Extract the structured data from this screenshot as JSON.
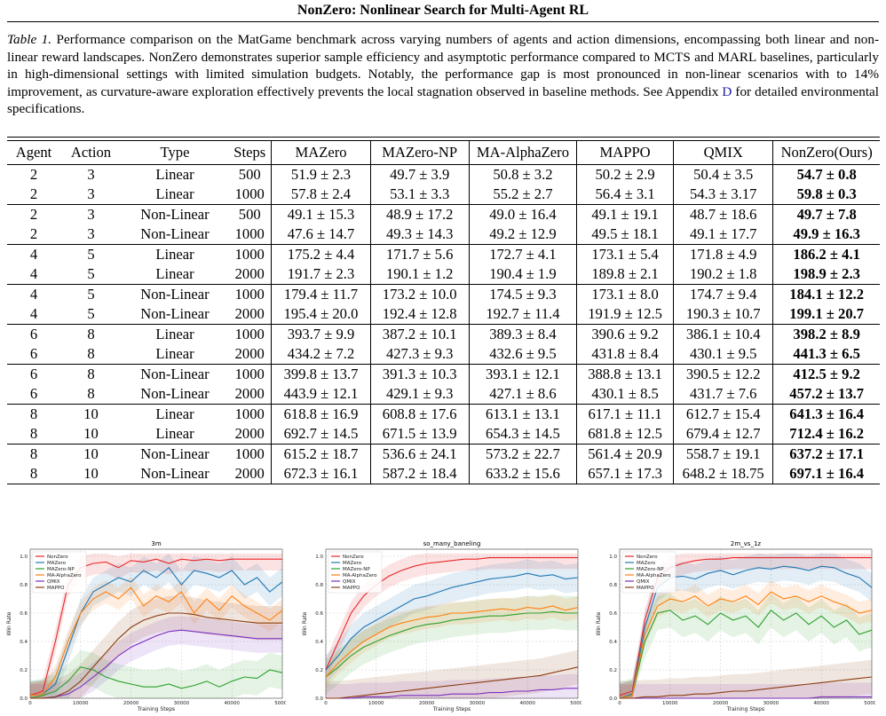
{
  "header": {
    "title": "NonZero: Nonlinear Search for Multi-Agent RL"
  },
  "caption": {
    "label": "Table 1.",
    "text_before_ref": " Performance comparison on the MatGame benchmark across varying numbers of agents and action dimensions, encompassing both linear and non-linear reward landscapes. NonZero demonstrates superior sample efficiency and asymptotic performance compared to MCTS and MARL baselines, particularly in high-dimensional settings with limited simulation budgets. Notably, the performance gap is most pronounced in non-linear scenarios with to 14% improvement, as curvature-aware exploration effectively prevents the local stagnation observed in baseline methods. See Appendix ",
    "ref": "D",
    "text_after_ref": " for detailed environmental specifications."
  },
  "table": {
    "headers": [
      "Agent",
      "Action",
      "Type",
      "Steps",
      "MAZero",
      "MAZero-NP",
      "MA-AlphaZero",
      "MAPPO",
      "QMIX",
      "NonZero(Ours)"
    ],
    "rows": [
      [
        "2",
        "3",
        "Linear",
        "500",
        "51.9 ± 2.3",
        "49.7 ± 3.9",
        "50.8 ± 3.2",
        "50.2 ± 2.9",
        "50.4 ± 3.5",
        "54.7 ± 0.8"
      ],
      [
        "2",
        "3",
        "Linear",
        "1000",
        "57.8 ± 2.4",
        "53.1 ± 3.3",
        "55.2 ± 2.7",
        "56.4 ± 3.1",
        "54.3 ± 3.17",
        "59.8 ± 0.3"
      ],
      [
        "2",
        "3",
        "Non-Linear",
        "500",
        "49.1 ± 15.3",
        "48.9 ± 17.2",
        "49.0 ± 16.4",
        "49.1 ± 19.1",
        "48.7 ± 18.6",
        "49.7 ± 7.8"
      ],
      [
        "2",
        "3",
        "Non-Linear",
        "1000",
        "47.6 ± 14.7",
        "49.3 ± 14.3",
        "49.2 ± 12.9",
        "49.5 ± 18.1",
        "49.1 ± 17.7",
        "49.9 ± 16.3"
      ],
      [
        "4",
        "5",
        "Linear",
        "1000",
        "175.2 ± 4.4",
        "171.7 ± 5.6",
        "172.7 ± 4.1",
        "173.1 ± 5.4",
        "171.8 ± 4.9",
        "186.2 ± 4.1"
      ],
      [
        "4",
        "5",
        "Linear",
        "2000",
        "191.7 ± 2.3",
        "190.1 ± 1.2",
        "190.4 ± 1.9",
        "189.8 ± 2.1",
        "190.2 ± 1.8",
        "198.9 ± 2.3"
      ],
      [
        "4",
        "5",
        "Non-Linear",
        "1000",
        "179.4 ± 11.7",
        "173.2 ± 10.0",
        "174.5 ± 9.3",
        "173.1 ± 8.0",
        "174.7 ± 9.4",
        "184.1 ± 12.2"
      ],
      [
        "4",
        "5",
        "Non-Linear",
        "2000",
        "195.4 ± 20.0",
        "192.4 ± 12.8",
        "192.7 ± 11.4",
        "191.9 ± 12.5",
        "190.3 ± 10.7",
        "199.1 ± 20.7"
      ],
      [
        "6",
        "8",
        "Linear",
        "1000",
        "393.7 ± 9.9",
        "387.2 ± 10.1",
        "389.3 ± 8.4",
        "390.6 ± 9.2",
        "386.1 ± 10.4",
        "398.2 ± 8.9"
      ],
      [
        "6",
        "8",
        "Linear",
        "2000",
        "434.2 ± 7.2",
        "427.3 ± 9.3",
        "432.6 ± 9.5",
        "431.8 ± 8.4",
        "430.1 ± 9.5",
        "441.3 ± 6.5"
      ],
      [
        "6",
        "8",
        "Non-Linear",
        "1000",
        "399.8 ± 13.7",
        "391.3 ± 10.3",
        "393.1 ± 12.1",
        "388.8 ± 13.1",
        "390.5 ± 12.2",
        "412.5 ± 9.2"
      ],
      [
        "6",
        "8",
        "Non-Linear",
        "2000",
        "443.9 ± 12.1",
        "429.1 ± 9.3",
        "427.1 ± 8.6",
        "430.1 ± 8.5",
        "431.7 ± 7.6",
        "457.2 ± 13.7"
      ],
      [
        "8",
        "10",
        "Linear",
        "1000",
        "618.8 ± 16.9",
        "608.8 ± 17.6",
        "613.1 ± 13.1",
        "617.1 ± 11.1",
        "612.7 ± 15.4",
        "641.3 ± 16.4"
      ],
      [
        "8",
        "10",
        "Linear",
        "2000",
        "692.7 ± 14.5",
        "671.5 ± 13.9",
        "654.3 ± 14.5",
        "681.8 ± 12.5",
        "679.4 ± 12.7",
        "712.4 ± 16.2"
      ],
      [
        "8",
        "10",
        "Non-Linear",
        "1000",
        "615.2 ± 18.7",
        "536.6 ± 24.1",
        "573.2 ± 22.7",
        "561.4 ± 20.9",
        "558.7 ± 19.1",
        "637.2 ± 17.1"
      ],
      [
        "8",
        "10",
        "Non-Linear",
        "2000",
        "672.3 ± 16.1",
        "587.2 ± 18.4",
        "633.2 ± 15.6",
        "657.1 ± 17.3",
        "648.2 ± 18.75",
        "697.1 ± 16.4"
      ]
    ]
  },
  "chart_data": [
    {
      "type": "line",
      "title": "3m",
      "xlabel": "Training Steps",
      "ylabel": "Win Rate",
      "xlim": [
        0,
        50000
      ],
      "ylim": [
        0,
        1.05
      ],
      "xticks": [
        0,
        10000,
        20000,
        30000,
        40000,
        50000
      ],
      "yticks": [
        "0.0",
        "0.2",
        "0.4",
        "0.6",
        "0.8",
        "1.0"
      ],
      "grid": true,
      "legend": "top-left",
      "x": [
        0,
        2500,
        5000,
        7500,
        10000,
        12500,
        15000,
        17500,
        20000,
        22500,
        25000,
        27500,
        30000,
        32500,
        35000,
        37500,
        40000,
        42500,
        45000,
        47500,
        50000
      ],
      "series": [
        {
          "name": "NonZero",
          "color": "#e8262a",
          "values": [
            0.02,
            0.05,
            0.4,
            0.8,
            0.92,
            0.95,
            0.96,
            0.92,
            0.97,
            0.96,
            0.98,
            0.95,
            0.98,
            0.97,
            0.98,
            0.97,
            0.98,
            0.98,
            0.98,
            0.98,
            0.98
          ]
        },
        {
          "name": "MAZero",
          "color": "#1f77b4",
          "values": [
            0.02,
            0.03,
            0.1,
            0.35,
            0.6,
            0.75,
            0.8,
            0.85,
            0.82,
            0.9,
            0.85,
            0.92,
            0.8,
            0.9,
            0.88,
            0.85,
            0.9,
            0.8,
            0.85,
            0.75,
            0.82
          ]
        },
        {
          "name": "MAZero-NP",
          "color": "#2ca02c",
          "values": [
            0.0,
            0.02,
            0.05,
            0.12,
            0.22,
            0.2,
            0.15,
            0.12,
            0.1,
            0.08,
            0.08,
            0.1,
            0.07,
            0.09,
            0.12,
            0.08,
            0.12,
            0.15,
            0.14,
            0.2,
            0.18
          ]
        },
        {
          "name": "MA-AlphaZero",
          "color": "#ff7f0e",
          "values": [
            0.02,
            0.03,
            0.15,
            0.4,
            0.6,
            0.7,
            0.75,
            0.7,
            0.78,
            0.65,
            0.72,
            0.68,
            0.75,
            0.6,
            0.7,
            0.62,
            0.72,
            0.65,
            0.6,
            0.55,
            0.62
          ]
        },
        {
          "name": "QMIX",
          "color": "#7b2fbe",
          "values": [
            0.0,
            0.0,
            0.01,
            0.03,
            0.08,
            0.15,
            0.22,
            0.3,
            0.36,
            0.4,
            0.44,
            0.47,
            0.48,
            0.47,
            0.46,
            0.45,
            0.44,
            0.43,
            0.42,
            0.42,
            0.42
          ]
        },
        {
          "name": "MAPPO",
          "color": "#8c3b0f",
          "values": [
            0.0,
            0.0,
            0.01,
            0.05,
            0.12,
            0.22,
            0.32,
            0.42,
            0.5,
            0.55,
            0.58,
            0.6,
            0.6,
            0.59,
            0.57,
            0.56,
            0.55,
            0.54,
            0.53,
            0.53,
            0.53
          ]
        }
      ]
    },
    {
      "type": "line",
      "title": "so_many_baneling",
      "xlabel": "Training Steps",
      "ylabel": "Win Rate",
      "xlim": [
        0,
        50000
      ],
      "ylim": [
        0,
        1.05
      ],
      "xticks": [
        0,
        10000,
        20000,
        30000,
        40000,
        50000
      ],
      "yticks": [
        "0.0",
        "0.2",
        "0.4",
        "0.6",
        "0.8",
        "1.0"
      ],
      "grid": true,
      "legend": "top-left",
      "x": [
        0,
        2500,
        5000,
        7500,
        10000,
        12500,
        15000,
        17500,
        20000,
        22500,
        25000,
        27500,
        30000,
        32500,
        35000,
        37500,
        40000,
        42500,
        45000,
        47500,
        50000
      ],
      "series": [
        {
          "name": "NonZero",
          "color": "#e8262a",
          "values": [
            0.2,
            0.4,
            0.6,
            0.72,
            0.8,
            0.86,
            0.9,
            0.93,
            0.95,
            0.96,
            0.97,
            0.98,
            0.98,
            0.99,
            0.99,
            0.99,
            0.99,
            0.99,
            0.99,
            0.99,
            0.99
          ]
        },
        {
          "name": "MAZero",
          "color": "#1f77b4",
          "values": [
            0.2,
            0.3,
            0.42,
            0.5,
            0.55,
            0.6,
            0.65,
            0.7,
            0.72,
            0.75,
            0.78,
            0.8,
            0.82,
            0.84,
            0.85,
            0.86,
            0.88,
            0.86,
            0.87,
            0.84,
            0.85
          ]
        },
        {
          "name": "MAZero-NP",
          "color": "#2ca02c",
          "values": [
            0.15,
            0.22,
            0.3,
            0.36,
            0.4,
            0.44,
            0.47,
            0.5,
            0.52,
            0.53,
            0.55,
            0.56,
            0.57,
            0.58,
            0.58,
            0.59,
            0.6,
            0.6,
            0.61,
            0.6,
            0.6
          ]
        },
        {
          "name": "MA-AlphaZero",
          "color": "#ff7f0e",
          "values": [
            0.15,
            0.25,
            0.33,
            0.4,
            0.45,
            0.5,
            0.53,
            0.55,
            0.57,
            0.58,
            0.6,
            0.6,
            0.61,
            0.62,
            0.63,
            0.62,
            0.64,
            0.63,
            0.65,
            0.62,
            0.64
          ]
        },
        {
          "name": "QMIX",
          "color": "#7b2fbe",
          "values": [
            0.0,
            0.0,
            0.0,
            0.01,
            0.01,
            0.01,
            0.02,
            0.02,
            0.02,
            0.02,
            0.03,
            0.03,
            0.03,
            0.04,
            0.04,
            0.05,
            0.05,
            0.06,
            0.06,
            0.07,
            0.07
          ]
        },
        {
          "name": "MAPPO",
          "color": "#8c3b0f",
          "values": [
            0.0,
            0.0,
            0.01,
            0.02,
            0.03,
            0.04,
            0.05,
            0.06,
            0.07,
            0.08,
            0.09,
            0.1,
            0.11,
            0.12,
            0.13,
            0.14,
            0.15,
            0.16,
            0.18,
            0.2,
            0.22
          ]
        }
      ]
    },
    {
      "type": "line",
      "title": "2m_vs_1z",
      "xlabel": "Training Steps",
      "ylabel": "Win Rate",
      "xlim": [
        0,
        50000
      ],
      "ylim": [
        0,
        1.05
      ],
      "xticks": [
        0,
        10000,
        20000,
        30000,
        40000,
        50000
      ],
      "yticks": [
        "0.0",
        "0.2",
        "0.4",
        "0.6",
        "0.8",
        "1.0"
      ],
      "grid": true,
      "legend": "top-left",
      "x": [
        0,
        2500,
        5000,
        7500,
        10000,
        12500,
        15000,
        17500,
        20000,
        22500,
        25000,
        27500,
        30000,
        32500,
        35000,
        37500,
        40000,
        42500,
        45000,
        47500,
        50000
      ],
      "series": [
        {
          "name": "NonZero",
          "color": "#e8262a",
          "values": [
            0.02,
            0.05,
            0.55,
            0.85,
            0.92,
            0.95,
            0.97,
            0.98,
            0.98,
            0.99,
            0.99,
            0.99,
            0.99,
            0.99,
            0.99,
            0.99,
            0.99,
            0.99,
            0.99,
            0.99,
            0.99
          ]
        },
        {
          "name": "MAZero",
          "color": "#1f77b4",
          "values": [
            0.0,
            0.03,
            0.5,
            0.78,
            0.85,
            0.86,
            0.84,
            0.88,
            0.9,
            0.87,
            0.9,
            0.92,
            0.91,
            0.93,
            0.92,
            0.9,
            0.93,
            0.92,
            0.88,
            0.85,
            0.78
          ]
        },
        {
          "name": "MAZero-NP",
          "color": "#2ca02c",
          "values": [
            0.0,
            0.02,
            0.4,
            0.6,
            0.62,
            0.55,
            0.58,
            0.52,
            0.6,
            0.55,
            0.58,
            0.5,
            0.62,
            0.55,
            0.6,
            0.52,
            0.58,
            0.5,
            0.55,
            0.45,
            0.48
          ]
        },
        {
          "name": "MA-AlphaZero",
          "color": "#ff7f0e",
          "values": [
            0.0,
            0.02,
            0.45,
            0.65,
            0.7,
            0.68,
            0.72,
            0.65,
            0.7,
            0.68,
            0.72,
            0.66,
            0.75,
            0.7,
            0.72,
            0.68,
            0.72,
            0.68,
            0.65,
            0.6,
            0.62
          ]
        },
        {
          "name": "QMIX",
          "color": "#7b2fbe",
          "values": [
            0.0,
            0.0,
            0.0,
            0.0,
            0.0,
            0.0,
            0.0,
            0.0,
            0.0,
            0.0,
            0.0,
            0.0,
            0.0,
            0.0,
            0.0,
            0.0,
            0.01,
            0.01,
            0.01,
            0.01,
            0.01
          ]
        },
        {
          "name": "MAPPO",
          "color": "#8c3b0f",
          "values": [
            0.0,
            0.0,
            0.01,
            0.01,
            0.02,
            0.02,
            0.03,
            0.03,
            0.04,
            0.05,
            0.05,
            0.06,
            0.07,
            0.08,
            0.09,
            0.1,
            0.11,
            0.12,
            0.13,
            0.14,
            0.15
          ]
        }
      ]
    }
  ]
}
